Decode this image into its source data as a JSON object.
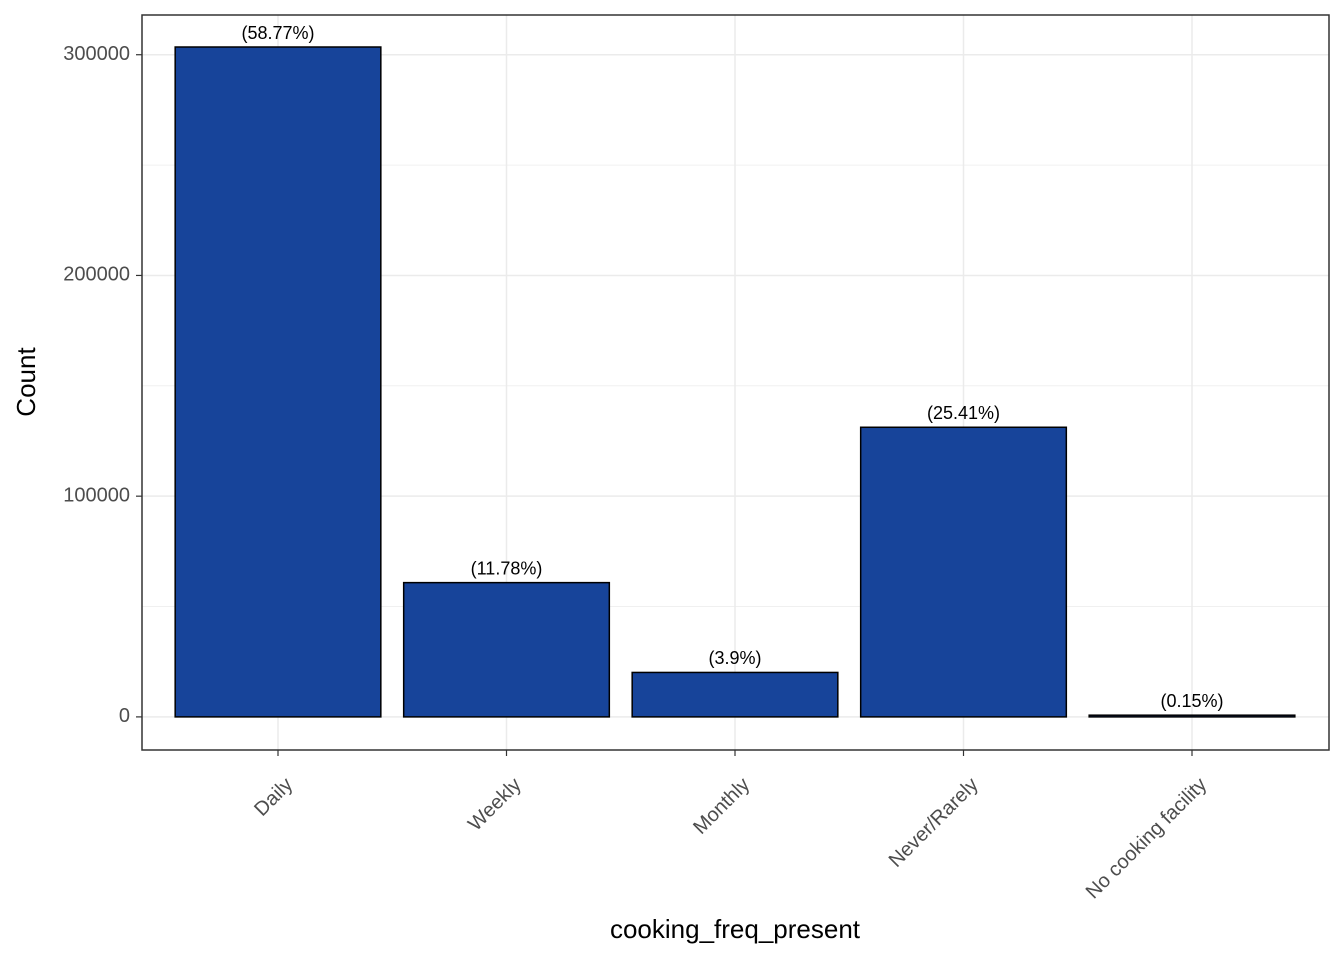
{
  "chart_data": {
    "type": "bar",
    "x_label": "cooking_freq_present",
    "y_label": "Count",
    "categories": [
      "Daily",
      "Weekly",
      "Monthly",
      "Never/Rarely",
      "No cooking facility"
    ],
    "values": [
      303500,
      60830,
      20140,
      131220,
      775
    ],
    "labels": [
      "(58.77%)",
      "(11.78%)",
      "(3.9%)",
      "(25.41%)",
      "(0.15%)"
    ],
    "color": "#17449a",
    "ylim": [
      -15000,
      318000
    ],
    "yticks": [
      0,
      100000,
      200000,
      300000
    ],
    "minor_yticks": [
      50000,
      150000,
      250000
    ],
    "grid": true
  }
}
